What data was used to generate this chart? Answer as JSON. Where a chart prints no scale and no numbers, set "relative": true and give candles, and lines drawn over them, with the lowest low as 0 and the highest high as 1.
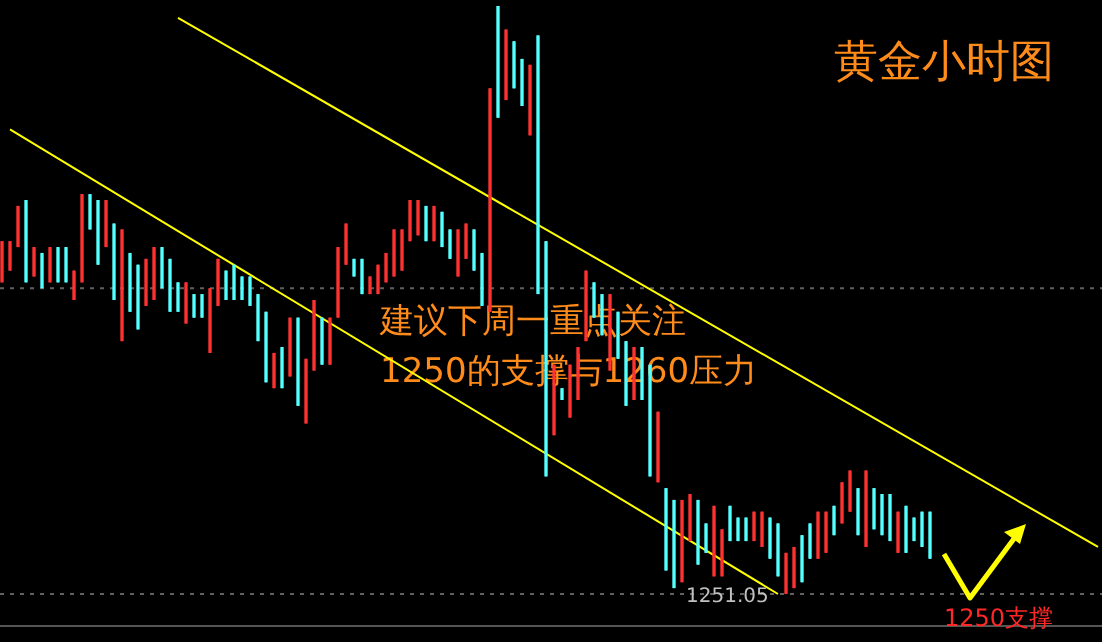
{
  "chart_data": {
    "type": "candlestick",
    "title": "黄金小时图",
    "relative": true,
    "categories": [
      null,
      null,
      null,
      null,
      null,
      null,
      null,
      null,
      null,
      null,
      null,
      null,
      null,
      null,
      null,
      null,
      null,
      null,
      null,
      null,
      null,
      null,
      null,
      null,
      null,
      null,
      null,
      null,
      null,
      null,
      null,
      null,
      null,
      null,
      null,
      null,
      null,
      null,
      null,
      null,
      null,
      null,
      null,
      null,
      null,
      null,
      null,
      null,
      null,
      null,
      null,
      null,
      null,
      null,
      null,
      null,
      null,
      null,
      null,
      null,
      null,
      null,
      null,
      null,
      null,
      null,
      null,
      null,
      null,
      null,
      null,
      null,
      null,
      null,
      null,
      null,
      null,
      null,
      null,
      null,
      null,
      null,
      null,
      null,
      null,
      null,
      null,
      null,
      null,
      null,
      null,
      null,
      null,
      null,
      null,
      null,
      null,
      null,
      null,
      null,
      null,
      null,
      null,
      null,
      null,
      null,
      null,
      null,
      null,
      null,
      null,
      null,
      null,
      null,
      null,
      null,
      null,
      null,
      null,
      null,
      null,
      null,
      null,
      null,
      null,
      null,
      null,
      null,
      null,
      null,
      null,
      null,
      null,
      null,
      null,
      null,
      null,
      null
    ],
    "colors": [
      "#ff3232",
      "#ff3232",
      "#ff3232",
      "#54ffff",
      "#ff3232",
      "#54ffff",
      "#ff3232",
      "#54ffff",
      "#54ffff",
      "#ff3232",
      "#ff3232",
      "#54ffff",
      "#54ffff",
      "#ff3232",
      "#54ffff",
      "#ff3232",
      "#54ffff",
      "#54ffff",
      "#ff3232",
      "#ff3232",
      "#54ffff",
      "#54ffff",
      "#54ffff",
      "#ff3232",
      "#54ffff",
      "#54ffff",
      "#ff3232",
      "#ff3232",
      "#54ffff",
      "#54ffff",
      "#54ffff",
      "#54ffff",
      "#54ffff",
      "#54ffff",
      "#ff3232",
      "#54ffff",
      "#ff3232",
      "#54ffff",
      "#ff3232",
      "#ff3232",
      "#54ffff",
      "#ff3232",
      "#ff3232",
      "#ff3232",
      "#54ffff",
      "#54ffff",
      "#ff3232",
      "#ff3232",
      "#ff3232",
      "#ff3232",
      "#ff3232",
      "#ff3232",
      "#ff3232",
      "#54ffff",
      "#ff3232",
      "#54ffff",
      "#54ffff",
      "#ff3232",
      "#ff3232",
      "#54ffff",
      "#54ffff",
      "#ff3232",
      "#54ffff",
      "#ff3232",
      "#54ffff",
      "#54ffff",
      "#ff3232",
      "#54ffff",
      "#54ffff",
      "#ff3232",
      "#54ffff",
      "#ff3232",
      "#ff3232",
      "#ff3232",
      "#54ffff",
      "#54ffff",
      "#ff3232",
      "#54ffff",
      "#54ffff",
      "#ff3232",
      "#54ffff",
      "#54ffff",
      "#ff3232",
      "#54ffff",
      "#54ffff",
      "#ff3232",
      "#ff3232",
      "#54ffff",
      "#54ffff",
      "#ff3232",
      "#ff3232",
      "#54ffff",
      "#54ffff",
      "#54ffff",
      "#ff3232",
      "#ff3232",
      "#54ffff",
      "#54ffff",
      "#ff3232",
      "#ff3232",
      "#54ffff",
      "#54ffff",
      "#ff3232",
      "#ff3232",
      "#54ffff",
      "#ff3232",
      "#ff3232",
      "#54ffff",
      "#ff3232",
      "#54ffff",
      "#54ffff",
      "#54ffff",
      "#ff3232",
      "#54ffff",
      "#54ffff",
      "#54ffff",
      "#54ffff",
      null,
      null,
      null,
      null,
      null,
      null,
      null,
      null,
      null,
      null,
      null,
      null,
      null,
      null,
      null,
      null,
      null,
      null,
      null,
      null,
      null
    ],
    "ohlc": [
      [
        0.53,
        0.6,
        0.53,
        0.6
      ],
      [
        0.55,
        0.6,
        0.55,
        0.6
      ],
      [
        0.59,
        0.66,
        0.59,
        0.66
      ],
      [
        0.67,
        0.67,
        0.53,
        0.53
      ],
      [
        0.54,
        0.59,
        0.54,
        0.59
      ],
      [
        0.58,
        0.58,
        0.52,
        0.52
      ],
      [
        0.53,
        0.59,
        0.53,
        0.59
      ],
      [
        0.59,
        0.59,
        0.53,
        0.53
      ],
      [
        0.59,
        0.59,
        0.53,
        0.53
      ],
      [
        0.5,
        0.55,
        0.5,
        0.55
      ],
      [
        0.53,
        0.68,
        0.53,
        0.68
      ],
      [
        0.68,
        0.68,
        0.62,
        0.62
      ],
      [
        0.67,
        0.67,
        0.56,
        0.56
      ],
      [
        0.59,
        0.67,
        0.59,
        0.67
      ],
      [
        0.63,
        0.63,
        0.5,
        0.5
      ],
      [
        0.43,
        0.62,
        0.43,
        0.62
      ],
      [
        0.58,
        0.58,
        0.48,
        0.48
      ],
      [
        0.56,
        0.56,
        0.45,
        0.45
      ],
      [
        0.49,
        0.57,
        0.49,
        0.57
      ],
      [
        0.5,
        0.59,
        0.5,
        0.59
      ],
      [
        0.59,
        0.59,
        0.52,
        0.52
      ],
      [
        0.57,
        0.57,
        0.48,
        0.48
      ],
      [
        0.53,
        0.53,
        0.48,
        0.48
      ],
      [
        0.46,
        0.53,
        0.46,
        0.53
      ],
      [
        0.51,
        0.51,
        0.47,
        0.47
      ],
      [
        0.51,
        0.51,
        0.47,
        0.47
      ],
      [
        0.41,
        0.52,
        0.41,
        0.52
      ],
      [
        0.49,
        0.57,
        0.49,
        0.57
      ],
      [
        0.55,
        0.55,
        0.5,
        0.5
      ],
      [
        0.56,
        0.56,
        0.5,
        0.5
      ],
      [
        0.54,
        0.54,
        0.5,
        0.5
      ],
      [
        0.54,
        0.54,
        0.49,
        0.49
      ],
      [
        0.51,
        0.51,
        0.43,
        0.43
      ],
      [
        0.48,
        0.48,
        0.36,
        0.36
      ],
      [
        0.35,
        0.41,
        0.35,
        0.41
      ],
      [
        0.42,
        0.42,
        0.35,
        0.35
      ],
      [
        0.37,
        0.47,
        0.37,
        0.47
      ],
      [
        0.47,
        0.47,
        0.32,
        0.32
      ],
      [
        0.29,
        0.4,
        0.29,
        0.4
      ],
      [
        0.38,
        0.5,
        0.38,
        0.5
      ],
      [
        0.47,
        0.47,
        0.39,
        0.39
      ],
      [
        0.39,
        0.47,
        0.39,
        0.47
      ],
      [
        0.47,
        0.59,
        0.47,
        0.59
      ],
      [
        0.56,
        0.63,
        0.56,
        0.63
      ],
      [
        0.57,
        0.57,
        0.54,
        0.54
      ],
      [
        0.57,
        0.57,
        0.51,
        0.51
      ],
      [
        0.51,
        0.54,
        0.51,
        0.54
      ],
      [
        0.51,
        0.56,
        0.51,
        0.56
      ],
      [
        0.53,
        0.58,
        0.53,
        0.58
      ],
      [
        0.54,
        0.62,
        0.54,
        0.62
      ],
      [
        0.55,
        0.62,
        0.55,
        0.62
      ],
      [
        0.6,
        0.67,
        0.6,
        0.67
      ],
      [
        0.61,
        0.67,
        0.61,
        0.67
      ],
      [
        0.66,
        0.66,
        0.6,
        0.6
      ],
      [
        0.6,
        0.66,
        0.6,
        0.66
      ],
      [
        0.65,
        0.65,
        0.59,
        0.59
      ],
      [
        0.62,
        0.62,
        0.57,
        0.57
      ],
      [
        0.54,
        0.62,
        0.54,
        0.62
      ],
      [
        0.57,
        0.63,
        0.57,
        0.63
      ],
      [
        0.62,
        0.62,
        0.55,
        0.55
      ],
      [
        0.58,
        0.58,
        0.49,
        0.49
      ],
      [
        0.48,
        0.86,
        0.48,
        0.86
      ],
      [
        1,
        1,
        0.81,
        0.81
      ],
      [
        0.84,
        0.96,
        0.84,
        0.96
      ],
      [
        0.94,
        0.94,
        0.86,
        0.86
      ],
      [
        0.91,
        0.91,
        0.83,
        0.83
      ],
      [
        0.78,
        0.9,
        0.78,
        0.9
      ],
      [
        0.95,
        0.95,
        0.51,
        0.51
      ],
      [
        0.6,
        0.6,
        0.2,
        0.2
      ],
      [
        0.27,
        0.39,
        0.27,
        0.39
      ],
      [
        0.35,
        0.35,
        0.33,
        0.33
      ],
      [
        0.3,
        0.39,
        0.3,
        0.39
      ],
      [
        0.33,
        0.42,
        0.33,
        0.42
      ],
      [
        0.43,
        0.55,
        0.43,
        0.55
      ],
      [
        0.53,
        0.53,
        0.47,
        0.47
      ],
      [
        0.51,
        0.51,
        0.44,
        0.44
      ],
      [
        0.38,
        0.51,
        0.38,
        0.51
      ],
      [
        0.48,
        0.48,
        0.4,
        0.4
      ],
      [
        0.43,
        0.43,
        0.32,
        0.32
      ],
      [
        0.33,
        0.42,
        0.33,
        0.42
      ],
      [
        0.42,
        0.42,
        0.33,
        0.33
      ],
      [
        0.39,
        0.39,
        0.2,
        0.2
      ],
      [
        0.19,
        0.31,
        0.19,
        0.31
      ],
      [
        0.18,
        0.18,
        0.04,
        0.04
      ],
      [
        0.16,
        0.16,
        0.01,
        0.01
      ],
      [
        0.02,
        0.16,
        0.02,
        0.16
      ],
      [
        0.09,
        0.17,
        0.09,
        0.17
      ],
      [
        0.16,
        0.16,
        0.05,
        0.05
      ],
      [
        0.12,
        0.12,
        0.07,
        0.07
      ],
      [
        0.03,
        0.15,
        0.03,
        0.15
      ],
      [
        0.03,
        0.11,
        0.03,
        0.11
      ],
      [
        0.15,
        0.15,
        0.09,
        0.09
      ],
      [
        0.13,
        0.13,
        0.09,
        0.09
      ],
      [
        0.13,
        0.13,
        0.09,
        0.09
      ],
      [
        0.09,
        0.14,
        0.09,
        0.14
      ],
      [
        0.08,
        0.14,
        0.08,
        0.14
      ],
      [
        0.13,
        0.13,
        0.06,
        0.06
      ],
      [
        0.12,
        0.12,
        0.03,
        0.03
      ],
      [
        0,
        0.07,
        0,
        0.07
      ],
      [
        0.01,
        0.08,
        0.01,
        0.08
      ],
      [
        0.1,
        0.1,
        0.02,
        0.02
      ],
      [
        0.12,
        0.12,
        0.06,
        0.06
      ],
      [
        0.06,
        0.14,
        0.06,
        0.14
      ],
      [
        0.07,
        0.14,
        0.07,
        0.14
      ],
      [
        0.15,
        0.15,
        0.1,
        0.1
      ],
      [
        0.12,
        0.19,
        0.12,
        0.19
      ],
      [
        0.14,
        0.21,
        0.14,
        0.21
      ],
      [
        0.18,
        0.18,
        0.1,
        0.1
      ],
      [
        0.08,
        0.21,
        0.08,
        0.21
      ],
      [
        0.18,
        0.18,
        0.11,
        0.11
      ],
      [
        0.17,
        0.17,
        0.1,
        0.1
      ],
      [
        0.17,
        0.17,
        0.09,
        0.09
      ],
      [
        0.07,
        0.14,
        0.07,
        0.14
      ],
      [
        0.15,
        0.15,
        0.07,
        0.07
      ],
      [
        0.13,
        0.13,
        0.09,
        0.09
      ],
      [
        0.14,
        0.14,
        0.08,
        0.08
      ],
      [
        0.14,
        0.14,
        0.06,
        0.06
      ],
      null,
      null,
      null,
      null,
      null,
      null,
      null,
      null,
      null,
      null,
      null,
      null,
      null,
      null,
      null,
      null,
      null,
      null,
      null,
      null,
      null
    ],
    "series": [
      {
        "type": "line",
        "color": "#ffff00",
        "values": [
          null,
          null,
          null,
          null,
          null,
          null,
          null,
          null,
          null,
          null,
          null,
          null,
          null,
          null,
          null,
          null,
          null,
          null,
          null,
          null,
          null,
          null,
          0.98,
          null,
          null,
          null,
          null,
          null,
          null,
          null,
          null,
          null,
          null,
          null,
          null,
          null,
          null,
          null,
          null,
          null,
          null,
          null,
          null,
          null,
          null,
          null,
          null,
          null,
          null,
          null,
          null,
          null,
          null,
          null,
          null,
          null,
          null,
          null,
          null,
          null,
          null,
          null,
          null,
          null,
          null,
          null,
          null,
          null,
          null,
          null,
          null,
          null,
          null,
          null,
          null,
          null,
          null,
          null,
          null,
          null,
          null,
          null,
          null,
          null,
          null,
          null,
          null,
          null,
          null,
          null,
          null,
          null,
          null,
          null,
          null,
          null,
          null,
          null,
          null,
          null,
          null,
          null,
          null,
          null,
          null,
          null,
          null,
          null,
          null,
          null,
          null,
          null,
          null,
          null,
          null,
          null,
          null,
          null,
          null,
          null,
          null,
          null,
          null,
          null,
          null,
          null,
          null,
          null,
          null,
          null,
          null,
          null,
          null,
          null,
          null,
          null,
          null,
          0.08
        ]
      },
      {
        "type": "line",
        "color": "#ffff00",
        "values": [
          null,
          0.79,
          null,
          null,
          null,
          null,
          null,
          null,
          null,
          null,
          null,
          null,
          null,
          null,
          null,
          null,
          null,
          null,
          null,
          null,
          null,
          null,
          null,
          null,
          null,
          null,
          null,
          null,
          null,
          null,
          null,
          null,
          null,
          null,
          null,
          null,
          null,
          null,
          null,
          null,
          null,
          null,
          null,
          null,
          null,
          null,
          null,
          null,
          null,
          null,
          null,
          null,
          null,
          null,
          null,
          null,
          null,
          null,
          null,
          null,
          null,
          null,
          null,
          null,
          null,
          null,
          null,
          null,
          null,
          null,
          null,
          null,
          null,
          null,
          null,
          null,
          null,
          null,
          null,
          null,
          null,
          null,
          null,
          null,
          null,
          null,
          null,
          null,
          null,
          null,
          null,
          null,
          null,
          null,
          null,
          null,
          null,
          0,
          null,
          null,
          null,
          null,
          null,
          null,
          null,
          null,
          null,
          null,
          null,
          null,
          null,
          null,
          null,
          null,
          null,
          null,
          null,
          null,
          null,
          null,
          null,
          null,
          null,
          null,
          null,
          null,
          null,
          null,
          null,
          null,
          null,
          null,
          null,
          null,
          null,
          null,
          null,
          null
        ]
      }
    ],
    "ref_lines": [
      {
        "axis": "y",
        "value": 0.52,
        "color": "#606060",
        "line_style": "dotted"
      },
      {
        "axis": "y",
        "value": 0,
        "color": "#606060",
        "line_style": "dotted"
      }
    ],
    "annotations": [
      "建议下周一重点关注",
      "1250的支撑与1260压力",
      "1250支撑",
      {
        "text": "1251.05",
        "y": 0
      }
    ]
  }
}
